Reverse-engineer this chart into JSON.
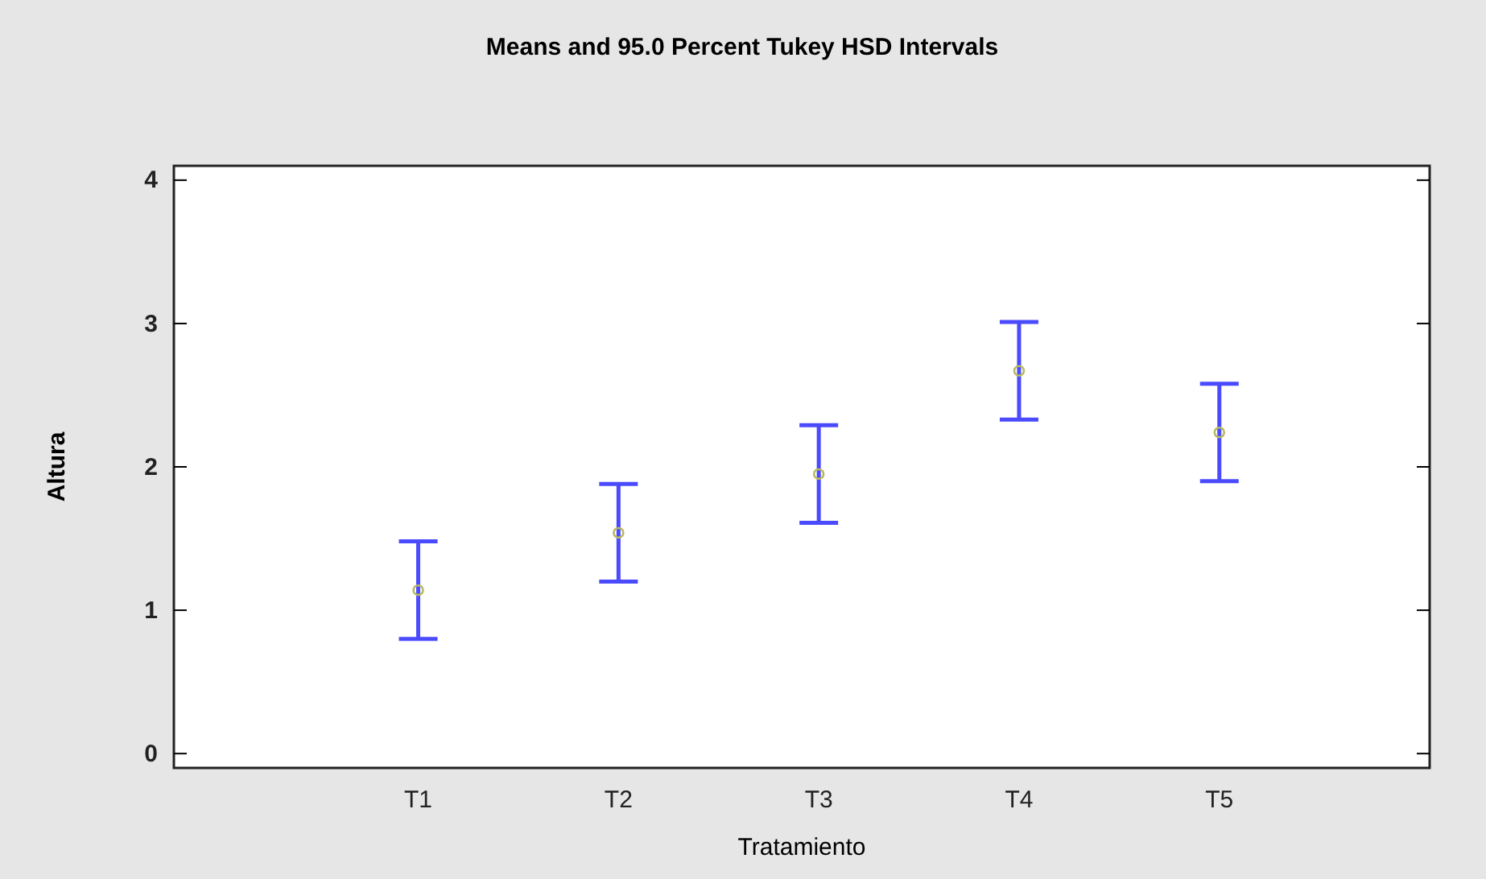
{
  "chart_data": {
    "type": "scatter",
    "title": "Means and 95.0 Percent Tukey HSD Intervals",
    "xlabel": "Tratamiento",
    "ylabel": "Altura",
    "categories": [
      "T1",
      "T2",
      "T3",
      "T4",
      "T5"
    ],
    "series": [
      {
        "color": "#b8b860",
        "values": [
          1.14,
          1.54,
          1.95,
          2.67,
          2.24
        ],
        "errors": [
          0.34,
          0.34,
          0.34,
          0.34,
          0.34
        ]
      }
    ],
    "marker": "circle",
    "ylim": [
      -0.1,
      4.1
    ],
    "yticks": [
      0,
      1,
      2,
      3,
      4
    ],
    "grid": false
  }
}
